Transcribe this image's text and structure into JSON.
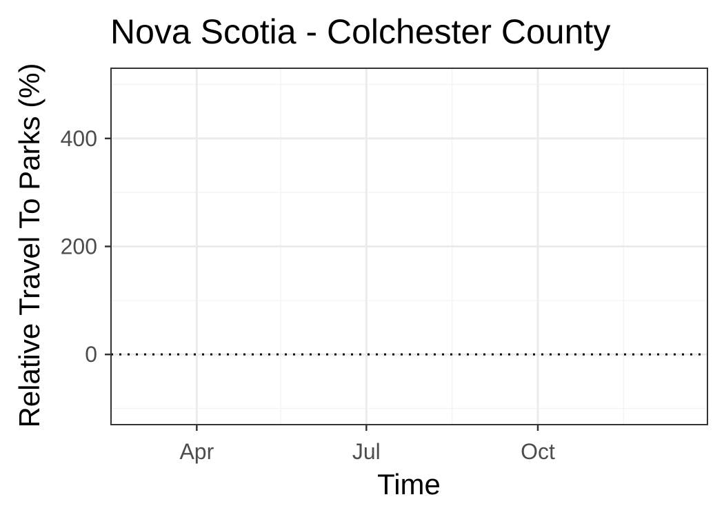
{
  "chart_data": {
    "type": "line",
    "title": "Nova Scotia - Colchester County",
    "xlabel": "Time",
    "ylabel": "Relative Travel To Parks (%)",
    "x_range": [
      "2020-02-15",
      "2020-12-31"
    ],
    "ylim": [
      -130,
      530
    ],
    "x_ticks": [
      {
        "label": "Apr",
        "date": "2020-04-01"
      },
      {
        "label": "Jul",
        "date": "2020-07-01"
      },
      {
        "label": "Oct",
        "date": "2020-10-01"
      }
    ],
    "x_minor_ticks": [
      "2020-02-15",
      "2020-05-16",
      "2020-08-16",
      "2020-11-16"
    ],
    "y_ticks": [
      {
        "label": "0",
        "value": 0
      },
      {
        "label": "200",
        "value": 200
      },
      {
        "label": "400",
        "value": 400
      }
    ],
    "y_minor_ticks": [
      -100,
      100,
      300,
      500
    ],
    "reference_line": {
      "y": 0,
      "style": "dotted"
    },
    "series": [],
    "grid": true,
    "colors": {
      "panel_border": "#333333",
      "grid_major": "#ebebeb",
      "grid_minor": "#f4f4f4",
      "reference_line": "#000000",
      "tick_text": "#4d4d4d",
      "tick_mark": "#333333"
    }
  }
}
